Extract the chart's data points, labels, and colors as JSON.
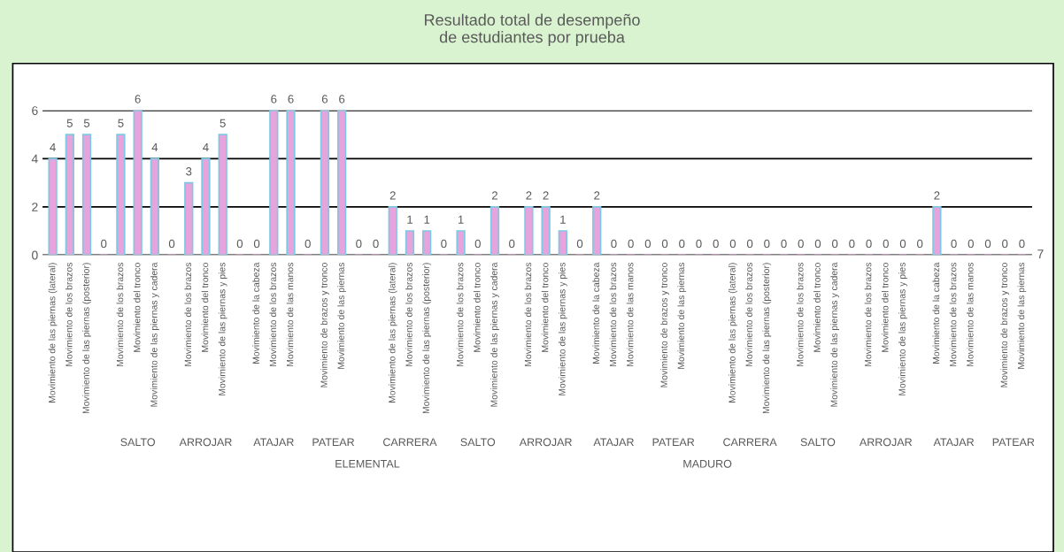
{
  "chart_data": {
    "type": "bar",
    "title": "Resultado total de desempeño\nde estudiantes por prueba",
    "categories": [
      "Movimiento de las piernas (lateral)",
      "Movimiento de los brazos",
      "Movimiento de las piernas (posterior)",
      null,
      "Movimiento de los brazos",
      "Movimiento del tronco",
      "Movimiento de las piernas y cadera",
      null,
      "Movimiento de los brazos",
      "Movimiento del tronco",
      "Movimiento de las piernas y pies",
      null,
      "Movimiento de la cabeza",
      "Movimiento de los brazos",
      "Movimiento de las manos",
      null,
      "Movimiento de brazos y tronco",
      "Movimiento de las piernas",
      null,
      null,
      "Movimiento de las piernas (lateral)",
      "Movimiento de los brazos",
      "Movimiento de las piernas (posterior)",
      null,
      "Movimiento de los brazos",
      "Movimiento del tronco",
      "Movimiento de las piernas y cadera",
      null,
      "Movimiento de los brazos",
      "Movimiento del tronco",
      "Movimiento de las piernas y pies",
      null,
      "Movimiento de la cabeza",
      "Movimiento de los brazos",
      "Movimiento de las manos",
      null,
      "Movimiento de brazos y tronco",
      "Movimiento de las piernas",
      null,
      null,
      "Movimiento de las piernas (lateral)",
      "Movimiento de los brazos",
      "Movimiento de las piernas (posterior)",
      null,
      "Movimiento de los brazos",
      "Movimiento del tronco",
      "Movimiento de las piernas y cadera",
      null,
      "Movimiento de los brazos",
      "Movimiento del tronco",
      "Movimiento de las piernas y pies",
      null,
      "Movimiento de la cabeza",
      "Movimiento de los brazos",
      "Movimiento de las manos",
      null,
      "Movimiento de brazos y tronco",
      "Movimiento de las piernas"
    ],
    "values": [
      4,
      5,
      5,
      0,
      5,
      6,
      4,
      0,
      3,
      4,
      5,
      0,
      0,
      6,
      6,
      0,
      6,
      6,
      0,
      0,
      2,
      1,
      1,
      0,
      1,
      0,
      2,
      0,
      2,
      2,
      1,
      0,
      2,
      0,
      0,
      0,
      0,
      0,
      0,
      0,
      0,
      0,
      0,
      0,
      0,
      0,
      0,
      0,
      0,
      0,
      0,
      0,
      2,
      0,
      0,
      0,
      0,
      0
    ],
    "color": "#e6a3dc",
    "ylim": [
      0,
      6
    ],
    "yticks": [
      0,
      2,
      4,
      6
    ],
    "grid": "y",
    "data_labels": true,
    "legend": false,
    "annotations": [
      "SALTO",
      "ARROJAR",
      "ATAJAR",
      "PATEAR",
      "ELEMENTAL",
      "CARRERA",
      "SALTO",
      "ARROJAR",
      "ATAJAR",
      "PATEAR",
      "MADURO",
      "CARRERA",
      "SALTO",
      "ARROJAR",
      "ATAJAR",
      "PATEAR",
      "7"
    ]
  }
}
